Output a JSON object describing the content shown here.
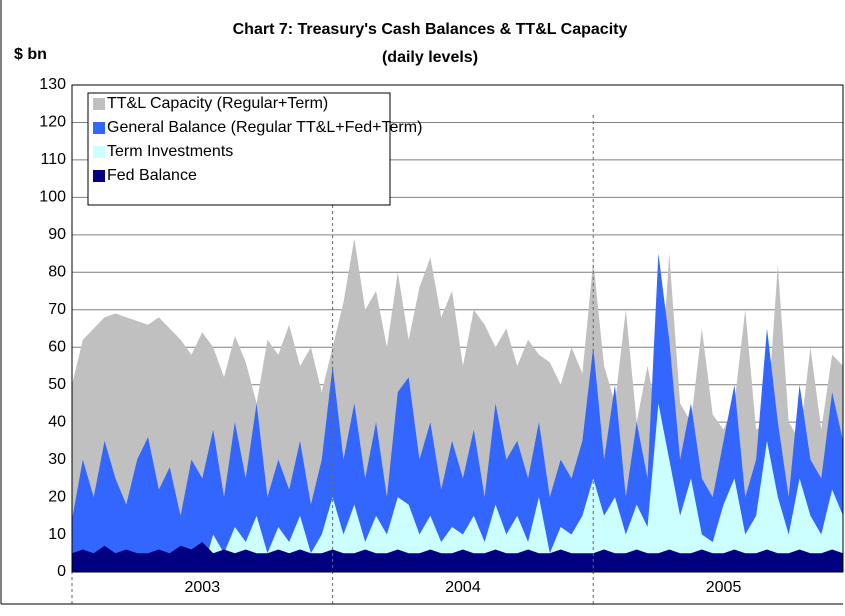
{
  "chart_data": {
    "type": "area",
    "title": "Chart 7: Treasury's Cash Balances & TT&L Capacity",
    "subtitle": "(daily levels)",
    "y_label": "$ bn",
    "categories": [
      null,
      null,
      null,
      null,
      null,
      null,
      null,
      null,
      null,
      null,
      null,
      null,
      "2003",
      null,
      null,
      null,
      null,
      null,
      null,
      null,
      null,
      null,
      null,
      null,
      null,
      null,
      null,
      null,
      null,
      null,
      null,
      null,
      null,
      null,
      null,
      null,
      "2004",
      null,
      null,
      null,
      null,
      null,
      null,
      null,
      null,
      null,
      null,
      null,
      null,
      null,
      null,
      null,
      null,
      null,
      null,
      null,
      null,
      null,
      null,
      null,
      "2005",
      null,
      null,
      null,
      null,
      null,
      null,
      null,
      null,
      null,
      null,
      null
    ],
    "ylim": [
      0,
      130
    ],
    "yticks": [
      0,
      10,
      20,
      30,
      40,
      50,
      60,
      70,
      80,
      90,
      100,
      110,
      120,
      130
    ],
    "grid": true,
    "legend": "top-left",
    "series": [
      {
        "name": "TT&L Capacity (Regular+Term)",
        "color": "#c0c0c0",
        "values": [
          50,
          62,
          65,
          68,
          69,
          68,
          67,
          66,
          68,
          65,
          62,
          58,
          64,
          60,
          52,
          63,
          56,
          45,
          62,
          58,
          66,
          55,
          60,
          48,
          60,
          72,
          89,
          70,
          75,
          60,
          80,
          62,
          76,
          84,
          68,
          75,
          55,
          70,
          66,
          60,
          65,
          55,
          62,
          58,
          56,
          50,
          60,
          53,
          83,
          55,
          45,
          70,
          40,
          55,
          40,
          85,
          45,
          40,
          65,
          42,
          38,
          45,
          70,
          38,
          40,
          82,
          40,
          35,
          60,
          38,
          58,
          55
        ]
      },
      {
        "name": "General Balance (Regular TT&L+Fed+Term)",
        "color": "#3366ff",
        "values": [
          14,
          30,
          20,
          35,
          25,
          18,
          30,
          36,
          22,
          28,
          15,
          30,
          25,
          38,
          20,
          40,
          25,
          45,
          20,
          30,
          22,
          35,
          18,
          30,
          55,
          30,
          45,
          25,
          40,
          20,
          48,
          52,
          30,
          40,
          22,
          35,
          25,
          38,
          20,
          45,
          30,
          35,
          25,
          40,
          20,
          30,
          25,
          35,
          60,
          30,
          50,
          20,
          40,
          25,
          85,
          62,
          30,
          45,
          25,
          20,
          35,
          50,
          20,
          30,
          65,
          40,
          20,
          50,
          30,
          25,
          48,
          35
        ]
      },
      {
        "name": "Term Investments",
        "color": "#ccffff",
        "values": [
          0,
          0,
          0,
          0,
          0,
          0,
          0,
          0,
          0,
          0,
          0,
          5,
          0,
          10,
          5,
          12,
          8,
          15,
          5,
          12,
          8,
          15,
          5,
          10,
          20,
          10,
          18,
          8,
          15,
          10,
          20,
          18,
          10,
          15,
          8,
          12,
          10,
          15,
          8,
          18,
          10,
          15,
          8,
          20,
          5,
          12,
          10,
          15,
          25,
          15,
          20,
          10,
          18,
          12,
          45,
          30,
          15,
          25,
          10,
          8,
          18,
          25,
          10,
          15,
          35,
          20,
          10,
          25,
          15,
          10,
          22,
          15
        ]
      },
      {
        "name": "Fed Balance",
        "color": "#000080",
        "values": [
          5,
          6,
          5,
          7,
          5,
          6,
          5,
          5,
          6,
          5,
          7,
          6,
          8,
          5,
          6,
          5,
          6,
          5,
          5,
          6,
          5,
          6,
          5,
          5,
          6,
          5,
          5,
          6,
          5,
          5,
          6,
          5,
          5,
          6,
          5,
          5,
          6,
          5,
          5,
          6,
          5,
          5,
          6,
          5,
          5,
          6,
          5,
          5,
          5,
          6,
          5,
          5,
          6,
          5,
          5,
          6,
          5,
          5,
          6,
          5,
          5,
          6,
          5,
          5,
          6,
          5,
          5,
          6,
          5,
          5,
          6,
          5
        ]
      }
    ]
  }
}
